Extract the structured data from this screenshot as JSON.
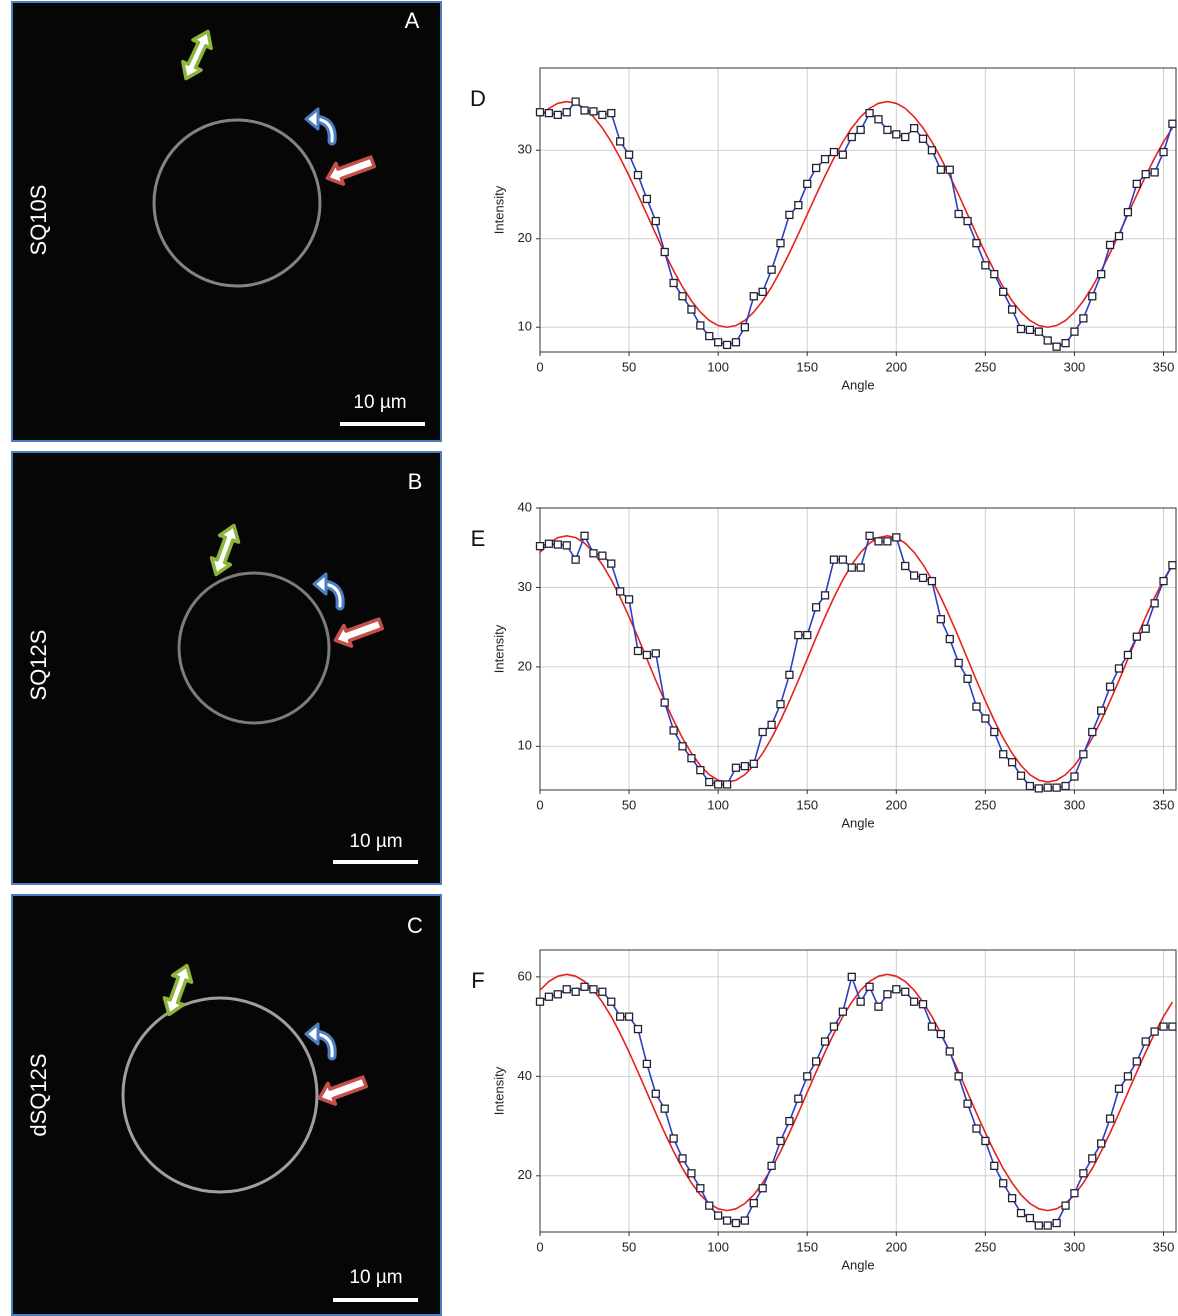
{
  "panels": [
    {
      "label": "A",
      "sample": "SQ10S",
      "scale_bar": "10 µm"
    },
    {
      "label": "B",
      "sample": "SQ12S",
      "scale_bar": "10 µm"
    },
    {
      "label": "C",
      "sample": "dSQ12S",
      "scale_bar": "10 µm"
    }
  ],
  "chart_data": [
    {
      "type": "line",
      "panel": "D",
      "xlabel": "Angle",
      "ylabel": "Intensity",
      "xlim": [
        0,
        357
      ],
      "ylim": [
        7.2,
        39.3
      ],
      "xticks": [
        0,
        50,
        100,
        150,
        200,
        250,
        300,
        350
      ],
      "yticks": [
        10,
        20,
        30
      ],
      "grid": true,
      "x": [
        0,
        5,
        10,
        15,
        20,
        25,
        30,
        35,
        40,
        45,
        50,
        55,
        60,
        65,
        70,
        75,
        80,
        85,
        90,
        95,
        100,
        105,
        110,
        115,
        120,
        125,
        130,
        135,
        140,
        145,
        150,
        155,
        160,
        165,
        170,
        175,
        180,
        185,
        190,
        195,
        200,
        205,
        210,
        215,
        220,
        225,
        230,
        235,
        240,
        245,
        250,
        255,
        260,
        265,
        270,
        275,
        280,
        285,
        290,
        295,
        300,
        305,
        310,
        315,
        320,
        325,
        330,
        335,
        340,
        345,
        350,
        355
      ],
      "series": [
        {
          "color": "#e8201e",
          "values": [
            33.79,
            34.74,
            35.31,
            35.5,
            35.31,
            34.74,
            33.79,
            32.52,
            30.95,
            29.13,
            27.11,
            24.97,
            22.75,
            20.53,
            18.39,
            16.38,
            14.55,
            12.98,
            11.71,
            10.76,
            10.19,
            10,
            10.19,
            10.76,
            11.71,
            12.98,
            14.55,
            16.38,
            18.39,
            20.53,
            22.75,
            24.97,
            27.11,
            29.13,
            30.95,
            32.52,
            33.79,
            34.74,
            35.31,
            35.5,
            35.31,
            34.74,
            33.79,
            32.52,
            30.95,
            29.13,
            27.11,
            24.97,
            22.75,
            20.53,
            18.39,
            16.38,
            14.55,
            12.98,
            11.71,
            10.76,
            10.19,
            10,
            10.19,
            10.76,
            11.71,
            12.98,
            14.55,
            16.38,
            18.39,
            20.53,
            22.75,
            24.97,
            27.11,
            29.13,
            30.95,
            32.52
          ]
        },
        {
          "color": "#2a3fc4",
          "marker": "square",
          "values": [
            34.3,
            34.2,
            34,
            34.3,
            35.5,
            34.5,
            34.4,
            34,
            34.2,
            31,
            29.5,
            27.2,
            24.5,
            22,
            18.5,
            15,
            13.5,
            12,
            10.2,
            9,
            8.3,
            8,
            8.3,
            10,
            13.5,
            14,
            16.5,
            19.5,
            22.7,
            23.8,
            26.2,
            28,
            29,
            29.8,
            29.5,
            31.5,
            32.3,
            34.2,
            33.5,
            32.3,
            31.8,
            31.5,
            32.5,
            31.3,
            30,
            27.8,
            27.8,
            22.8,
            22,
            19.5,
            17,
            16,
            14,
            12,
            9.8,
            9.7,
            9.5,
            8.5,
            7.8,
            8.2,
            9.5,
            11,
            13.5,
            16,
            19.3,
            20.3,
            23,
            26.2,
            27.3,
            27.5,
            29.8,
            33
          ]
        }
      ]
    },
    {
      "type": "line",
      "panel": "E",
      "xlabel": "Angle",
      "ylabel": "Intensity",
      "xlim": [
        0,
        357
      ],
      "ylim": [
        4.5,
        40
      ],
      "xticks": [
        0,
        50,
        100,
        150,
        200,
        250,
        300,
        350
      ],
      "yticks": [
        10,
        20,
        30,
        40
      ],
      "grid": true,
      "x": [
        0,
        5,
        10,
        15,
        20,
        25,
        30,
        35,
        40,
        45,
        50,
        55,
        60,
        65,
        70,
        75,
        80,
        85,
        90,
        95,
        100,
        105,
        110,
        115,
        120,
        125,
        130,
        135,
        140,
        145,
        150,
        155,
        160,
        165,
        170,
        175,
        180,
        185,
        190,
        195,
        200,
        205,
        210,
        215,
        220,
        225,
        230,
        235,
        240,
        245,
        250,
        255,
        260,
        265,
        270,
        275,
        280,
        285,
        290,
        295,
        300,
        305,
        310,
        315,
        320,
        325,
        330,
        335,
        340,
        345,
        350,
        355
      ],
      "series": [
        {
          "color": "#e8201e",
          "values": [
            34.42,
            35.57,
            36.27,
            36.5,
            36.27,
            35.57,
            34.42,
            32.87,
            30.97,
            28.75,
            26.3,
            23.7,
            21,
            18.3,
            15.7,
            13.25,
            11.03,
            9.13,
            7.58,
            6.43,
            5.73,
            5.5,
            5.73,
            6.43,
            7.58,
            9.13,
            11.03,
            13.25,
            15.7,
            18.3,
            21,
            23.7,
            26.3,
            28.75,
            30.97,
            32.87,
            34.42,
            35.57,
            36.27,
            36.5,
            36.27,
            35.57,
            34.42,
            32.87,
            30.97,
            28.75,
            26.3,
            23.7,
            21,
            18.3,
            15.7,
            13.25,
            11.03,
            9.13,
            7.58,
            6.43,
            5.73,
            5.5,
            5.73,
            6.43,
            7.58,
            9.13,
            11.03,
            13.25,
            15.7,
            18.3,
            21,
            23.7,
            26.3,
            28.75,
            30.97,
            32.87
          ]
        },
        {
          "color": "#2a3fc4",
          "marker": "square",
          "values": [
            35.2,
            35.5,
            35.4,
            35.3,
            33.5,
            36.5,
            34.3,
            34,
            33,
            29.5,
            28.5,
            22,
            21.5,
            21.7,
            15.5,
            12,
            10,
            8.5,
            7,
            5.5,
            5.2,
            5.2,
            7.3,
            7.5,
            7.8,
            11.8,
            12.7,
            15.3,
            19,
            24,
            24,
            27.5,
            29,
            33.5,
            33.5,
            32.5,
            32.5,
            36.5,
            35.8,
            35.8,
            36.3,
            32.7,
            31.5,
            31.2,
            30.8,
            26,
            23.5,
            20.5,
            18.5,
            15,
            13.5,
            11.8,
            9,
            8,
            6.3,
            5,
            4.7,
            4.8,
            4.8,
            5,
            6.2,
            9,
            11.8,
            14.5,
            17.5,
            19.8,
            21.5,
            23.8,
            24.8,
            28,
            30.8,
            32.8
          ]
        }
      ]
    },
    {
      "type": "line",
      "panel": "F",
      "xlabel": "Angle",
      "ylabel": "Intensity",
      "xlim": [
        0,
        357
      ],
      "ylim": [
        8.7,
        65.4
      ],
      "xticks": [
        0,
        50,
        100,
        150,
        200,
        250,
        300,
        350
      ],
      "yticks": [
        20,
        40,
        60
      ],
      "grid": true,
      "x": [
        0,
        5,
        10,
        15,
        20,
        25,
        30,
        35,
        40,
        45,
        50,
        55,
        60,
        65,
        70,
        75,
        80,
        85,
        90,
        95,
        100,
        105,
        110,
        115,
        120,
        125,
        130,
        135,
        140,
        145,
        150,
        155,
        160,
        165,
        170,
        175,
        180,
        185,
        190,
        195,
        200,
        205,
        210,
        215,
        220,
        225,
        230,
        235,
        240,
        245,
        250,
        255,
        260,
        265,
        270,
        275,
        280,
        285,
        290,
        295,
        300,
        305,
        310,
        315,
        320,
        325,
        330,
        335,
        340,
        345,
        350,
        355
      ],
      "series": [
        {
          "color": "#e8201e",
          "values": [
            57.32,
            59.08,
            60.14,
            60.5,
            60.14,
            59.08,
            57.32,
            54.94,
            52.02,
            48.63,
            44.87,
            40.88,
            36.75,
            32.62,
            28.63,
            24.88,
            21.48,
            18.56,
            16.18,
            14.43,
            13.36,
            13,
            13.36,
            14.43,
            16.18,
            18.56,
            21.48,
            24.88,
            28.63,
            32.62,
            36.75,
            40.88,
            44.87,
            48.63,
            52.02,
            54.94,
            57.32,
            59.08,
            60.14,
            60.5,
            60.14,
            59.08,
            57.32,
            54.94,
            52.02,
            48.63,
            44.87,
            40.88,
            36.75,
            32.62,
            28.63,
            24.88,
            21.48,
            18.56,
            16.18,
            14.43,
            13.36,
            13,
            13.36,
            14.43,
            16.18,
            18.56,
            21.48,
            24.88,
            28.63,
            32.62,
            36.75,
            40.88,
            44.87,
            48.63,
            52.02,
            54.94
          ]
        },
        {
          "color": "#2a3fc4",
          "marker": "square",
          "values": [
            55,
            56,
            56.5,
            57.5,
            57,
            58,
            57.5,
            57,
            55,
            52,
            52,
            49.5,
            42.5,
            36.5,
            33.5,
            27.5,
            23.5,
            20.5,
            17.5,
            14,
            12,
            11,
            10.5,
            11,
            14.5,
            17.5,
            22,
            27,
            31,
            35.5,
            40,
            43,
            47,
            50,
            53,
            60,
            55,
            58,
            54,
            56.5,
            57.5,
            57,
            55,
            54.5,
            50,
            48.5,
            45,
            40,
            34.5,
            29.5,
            27,
            22,
            18.5,
            15.5,
            12.5,
            11.5,
            10,
            10,
            10.5,
            14,
            16.5,
            20.5,
            23.5,
            26.5,
            31.5,
            37.5,
            40,
            43,
            47,
            49,
            50,
            50
          ]
        }
      ]
    }
  ]
}
